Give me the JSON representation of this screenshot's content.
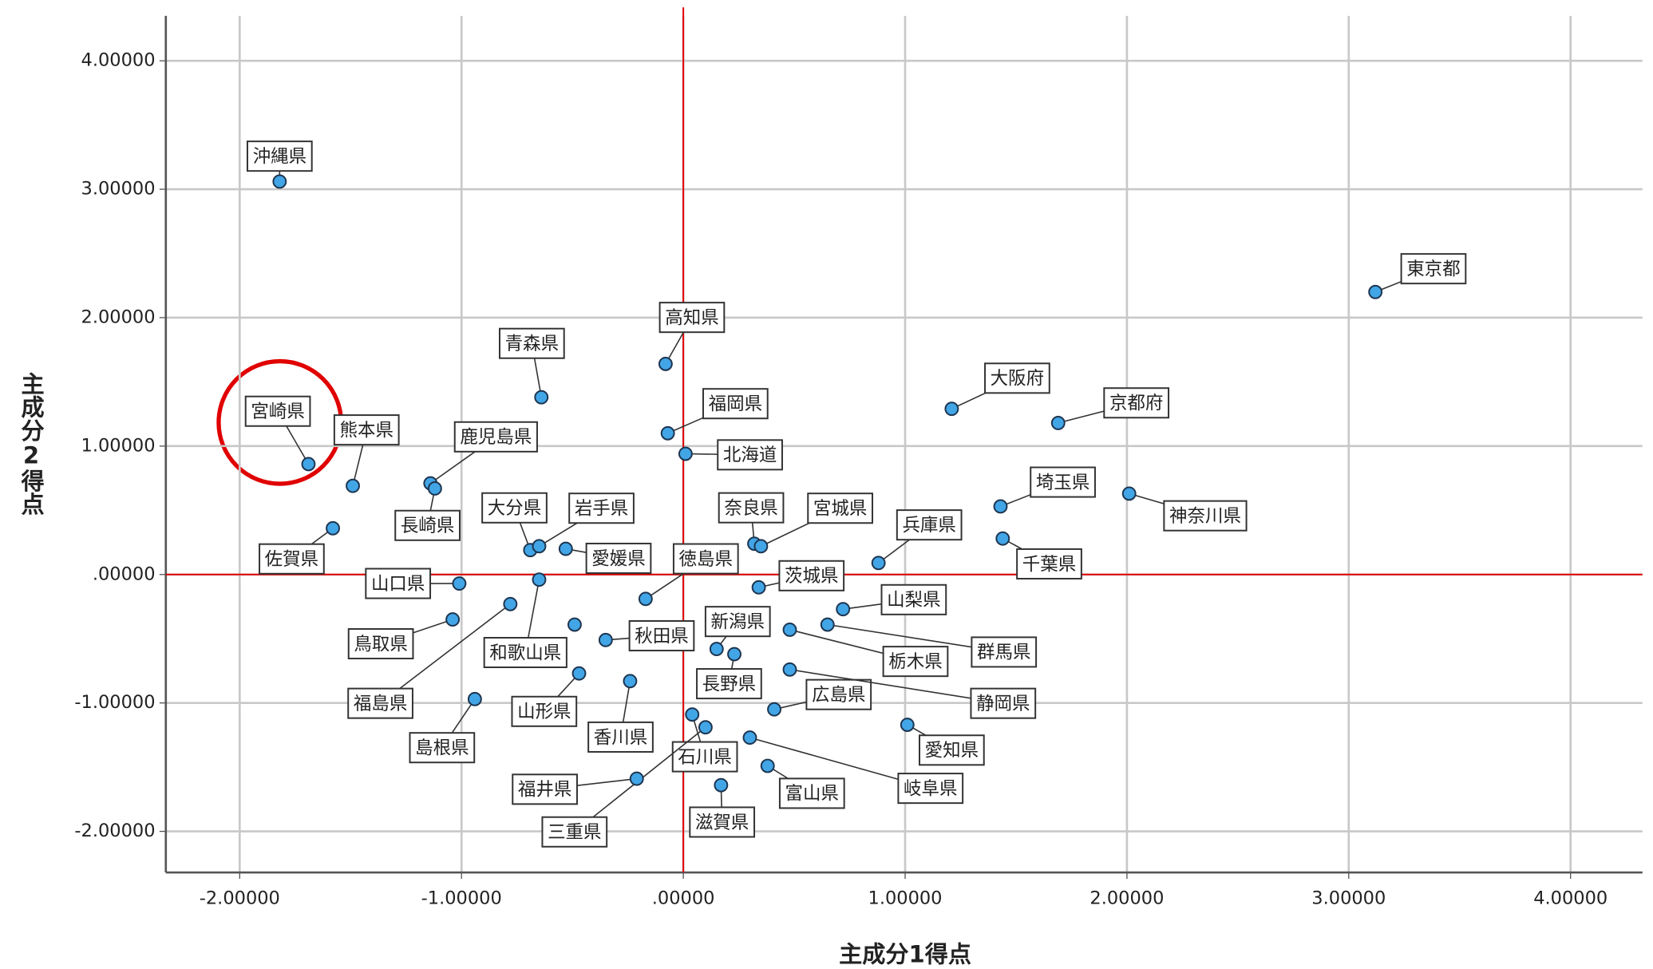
{
  "chart_data": {
    "type": "scatter",
    "x_label": "主成分1得点",
    "y_label": "主成分2得点",
    "labels": [
      "沖縄県",
      "東京都",
      "宮崎県",
      "熊本県",
      "鹿児島県",
      "長崎県",
      "佐賀県",
      "青森県",
      "高知県",
      "福岡県",
      "北海道",
      "大分県",
      "岩手県",
      "愛媛県",
      "奈良県",
      "宮城県",
      "兵庫県",
      "大阪府",
      "京都府",
      "埼玉県",
      "千葉県",
      "神奈川県",
      "山口県",
      "和歌山県",
      "鳥取県",
      "福島県",
      "徳島県",
      "茨城県",
      "山梨県",
      "群馬県",
      "秋田県",
      "新潟県",
      "栃木県",
      "長野県",
      "広島県",
      "静岡県",
      "愛知県",
      "山形県",
      "香川県",
      "島根県",
      "石川県",
      "福井県",
      "三重県",
      "岐阜県",
      "富山県",
      "滋賀県",
      null
    ],
    "x": [
      -1.82,
      3.12,
      -1.69,
      -1.49,
      -1.14,
      -1.12,
      -1.58,
      -0.64,
      -0.08,
      -0.07,
      0.01,
      -0.69,
      -0.65,
      -0.53,
      0.32,
      0.35,
      0.88,
      1.21,
      1.69,
      1.43,
      1.44,
      2.01,
      -1.01,
      -0.65,
      -1.04,
      -0.78,
      -0.17,
      0.34,
      0.72,
      0.65,
      -0.35,
      0.15,
      0.48,
      0.23,
      0.41,
      0.48,
      1.01,
      -0.47,
      -0.24,
      -0.94,
      0.04,
      -0.21,
      0.1,
      0.3,
      0.38,
      0.17,
      -0.49
    ],
    "y": [
      3.06,
      2.2,
      0.86,
      0.69,
      0.71,
      0.67,
      0.36,
      1.38,
      1.64,
      1.1,
      0.94,
      0.19,
      0.22,
      0.2,
      0.24,
      0.22,
      0.09,
      1.29,
      1.18,
      0.53,
      0.28,
      0.63,
      -0.07,
      -0.04,
      -0.35,
      -0.23,
      -0.19,
      -0.1,
      -0.27,
      -0.39,
      -0.51,
      -0.58,
      -0.43,
      -0.62,
      -1.05,
      -0.74,
      -1.17,
      -0.77,
      -0.83,
      -0.97,
      -1.09,
      -1.59,
      -1.19,
      -1.27,
      -1.49,
      -1.64,
      -0.39
    ],
    "color": "#42a5e6",
    "xlim": [
      -2.333,
      4.324
    ],
    "ylim": [
      -2.32,
      4.35
    ],
    "xticks": [
      {
        "value": -2,
        "label": "-2.00000"
      },
      {
        "value": -1,
        "label": "-1.00000"
      },
      {
        "value": 0,
        "label": ".00000"
      },
      {
        "value": 1,
        "label": "1.00000"
      },
      {
        "value": 2,
        "label": "2.00000"
      },
      {
        "value": 3,
        "label": "3.00000"
      },
      {
        "value": 4,
        "label": "4.00000"
      }
    ],
    "yticks": [
      {
        "value": -2,
        "label": "-2.00000"
      },
      {
        "value": -1,
        "label": "-1.00000"
      },
      {
        "value": 0,
        "label": ".00000"
      },
      {
        "value": 1,
        "label": "1.00000"
      },
      {
        "value": 2,
        "label": "2.00000"
      },
      {
        "value": 3,
        "label": "3.00000"
      },
      {
        "value": 4,
        "label": "4.00000"
      }
    ],
    "grid": true,
    "xref": 0,
    "yref": 0,
    "ref_color": "#e00000"
  }
}
